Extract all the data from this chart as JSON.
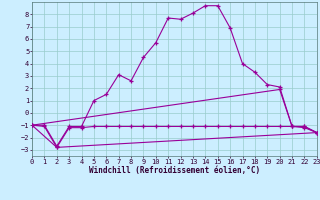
{
  "background_color": "#cceeff",
  "grid_color": "#99cccc",
  "line_color": "#990099",
  "xlabel": "Windchill (Refroidissement éolien,°C)",
  "xlim": [
    0,
    23
  ],
  "ylim": [
    -3.5,
    9.0
  ],
  "yticks": [
    -3,
    -2,
    -1,
    0,
    1,
    2,
    3,
    4,
    5,
    6,
    7,
    8
  ],
  "xticks": [
    0,
    1,
    2,
    3,
    4,
    5,
    6,
    7,
    8,
    9,
    10,
    11,
    12,
    13,
    14,
    15,
    16,
    17,
    18,
    19,
    20,
    21,
    22,
    23
  ],
  "line1_x": [
    0,
    1,
    2,
    3,
    4,
    5,
    6,
    7,
    8,
    9,
    10,
    11,
    12,
    13,
    14,
    15,
    16,
    17,
    18,
    19,
    20,
    21,
    22,
    23
  ],
  "line1_y": [
    -1,
    -1,
    -2.7,
    -1.1,
    -1.1,
    1.0,
    1.5,
    3.1,
    2.6,
    4.5,
    5.7,
    7.7,
    7.6,
    8.1,
    8.7,
    8.7,
    6.9,
    4.0,
    3.3,
    2.3,
    2.1,
    -1.1,
    -1.1,
    -1.6
  ],
  "line2_x": [
    0,
    1,
    2,
    3,
    4,
    5,
    6,
    7,
    8,
    9,
    10,
    11,
    12,
    13,
    14,
    15,
    16,
    17,
    18,
    19,
    20,
    21,
    22,
    23
  ],
  "line2_y": [
    -1.0,
    -1.1,
    -2.8,
    -1.2,
    -1.2,
    -1.1,
    -1.1,
    -1.1,
    -1.1,
    -1.1,
    -1.1,
    -1.1,
    -1.1,
    -1.1,
    -1.1,
    -1.1,
    -1.1,
    -1.1,
    -1.1,
    -1.1,
    -1.1,
    -1.1,
    -1.1,
    -1.6
  ],
  "line3_x": [
    0,
    2,
    23
  ],
  "line3_y": [
    -1.0,
    -2.8,
    -1.6
  ],
  "line4_x": [
    0,
    20,
    21,
    22,
    23
  ],
  "line4_y": [
    -1.0,
    1.9,
    -1.1,
    -1.2,
    -1.6
  ],
  "xlabel_fontsize": 5.5,
  "tick_fontsize": 5,
  "lw": 0.8,
  "ms": 2.5
}
